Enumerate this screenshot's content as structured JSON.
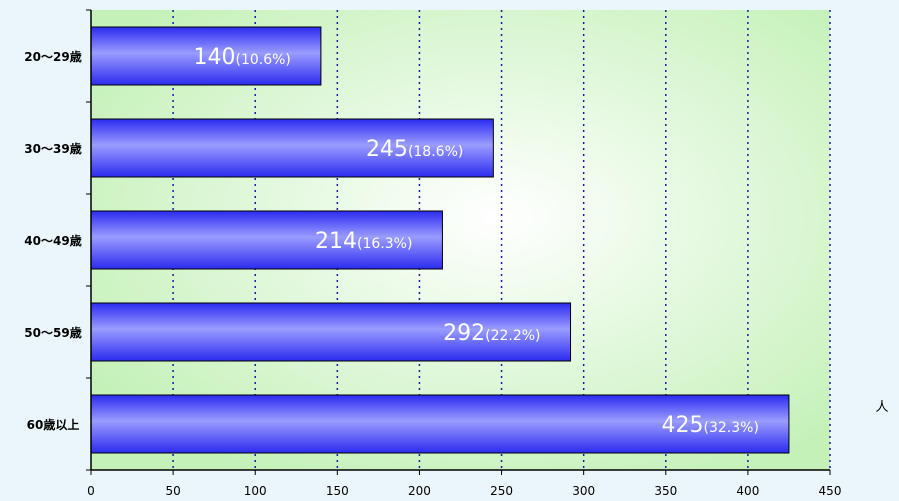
{
  "chart_data": {
    "type": "bar",
    "orientation": "horizontal",
    "categories": [
      "20～29歳",
      "30～39歳",
      "40～49歳",
      "50～59歳",
      "60歳以上"
    ],
    "values": [
      140,
      245,
      214,
      292,
      425
    ],
    "percent_labels": [
      "(10.6%)",
      "(18.6%)",
      "(16.3%)",
      "(22.2%)",
      "(32.3%)"
    ],
    "xlim": [
      0,
      450
    ],
    "x_ticks": [
      0,
      50,
      100,
      150,
      200,
      250,
      300,
      350,
      400,
      450
    ],
    "xlabel": "人",
    "grid": "vertical dotted",
    "colors": {
      "bar": "#2b2bf0",
      "bar_highlight": "#9a9cff",
      "plot_edge": "#c4f1b8",
      "plot_center": "#ffffff",
      "grid": "#1a1aa8",
      "page_background": "#eaf6fb"
    }
  }
}
